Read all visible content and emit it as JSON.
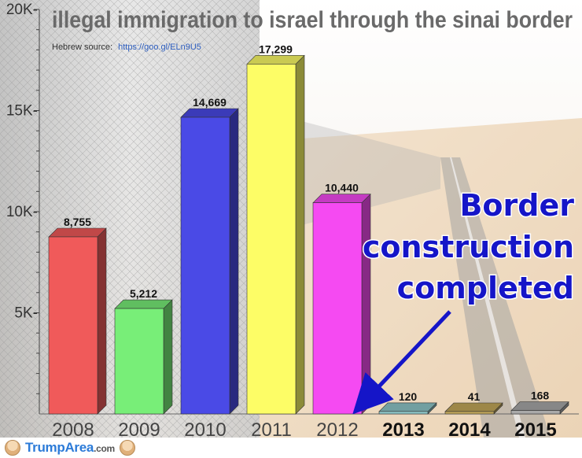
{
  "chart_data": {
    "type": "bar",
    "title": "illegal immigration to israel through the sinai border",
    "source_label": "Hebrew source:",
    "source_link": "https://goo.gl/ELn9U5",
    "categories": [
      "2008",
      "2009",
      "2010",
      "2011",
      "2012",
      "2013",
      "2014",
      "2015"
    ],
    "values": [
      8755,
      5212,
      14669,
      17299,
      10440,
      120,
      41,
      168
    ],
    "value_labels": [
      "8,755",
      "5,212",
      "14,669",
      "17,299",
      "10,440",
      "120",
      "41",
      "168"
    ],
    "bold_categories": [
      "2013",
      "2014",
      "2015"
    ],
    "colors": [
      "#f05a5a",
      "#78ee78",
      "#4a4ae6",
      "#fdfd66",
      "#f54af2",
      "#8ec7c9",
      "#c4a95a",
      "#a9a9a9"
    ],
    "yticks": [
      {
        "value": 5000,
        "label": "5K-"
      },
      {
        "value": 10000,
        "label": "10K-"
      },
      {
        "value": 15000,
        "label": "15K-"
      },
      {
        "value": 20000,
        "label": "20K-"
      }
    ],
    "ylim": [
      0,
      20000
    ],
    "grid": false,
    "annotation": {
      "lines": [
        "Border",
        "construction",
        "completed"
      ],
      "color": "#1515c8",
      "arrow_color": "#1515c8"
    },
    "background_scene": "border fence in desert"
  },
  "footer": {
    "brand_main": "TrumpArea",
    "brand_suffix": ".com"
  }
}
